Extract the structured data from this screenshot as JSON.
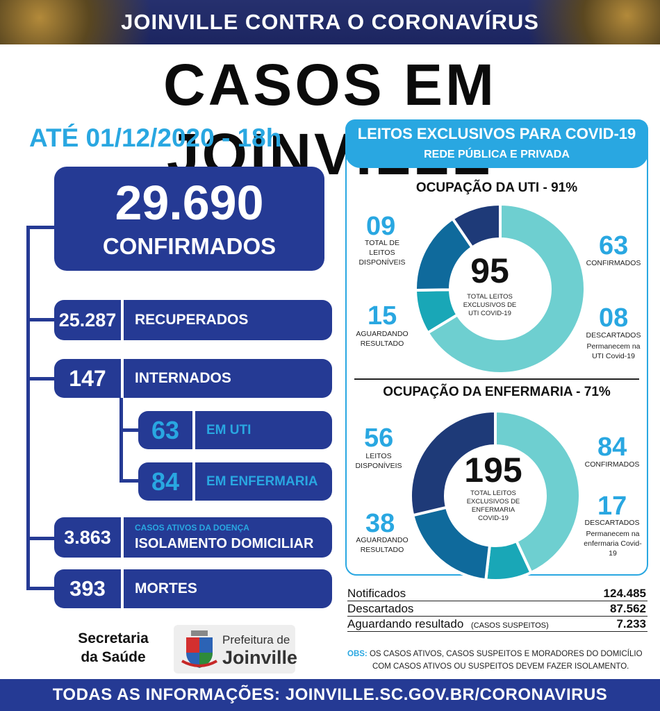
{
  "header": {
    "banner": "JOINVILLE CONTRA O CORONAVÍRUS",
    "title": "CASOS EM JOINVILLE",
    "date": "ATÉ 01/12/2020 - 18h"
  },
  "summary": {
    "confirmed_value": "29.690",
    "confirmed_label": "CONFIRMADOS",
    "recovered_value": "25.287",
    "recovered_label": "RECUPERADOS",
    "hospitalized_value": "147",
    "hospitalized_label": "INTERNADOS",
    "icu_value": "63",
    "icu_label": "EM UTI",
    "ward_value": "84",
    "ward_label": "EM ENFERMARIA",
    "home_value": "3.863",
    "home_caption": "CASOS ATIVOS DA DOENÇA",
    "home_label": "ISOLAMENTO DOMICILIAR",
    "deaths_value": "393",
    "deaths_label": "MORTES"
  },
  "beds": {
    "title": "LEITOS EXCLUSIVOS PARA COVID-19",
    "subtitle": "REDE PÚBLICA E PRIVADA"
  },
  "chart_data": [
    {
      "type": "pie",
      "title": "OCUPAÇÃO DA UTI - 91%",
      "center_value": "95",
      "center_caption": "TOTAL LEITOS EXCLUSIVOS DE UTI COVID-19",
      "slices": [
        {
          "label": "CONFIRMADOS",
          "value": 63,
          "display": "63",
          "color": "#6ecfd0"
        },
        {
          "label": "DESCARTADOS",
          "value": 8,
          "display": "08",
          "note": "Permanecem na UTI Covid-19",
          "color": "#19a7b7"
        },
        {
          "label": "AGUARDANDO RESULTADO",
          "value": 15,
          "display": "15",
          "color": "#0f6a9c"
        },
        {
          "label": "TOTAL DE LEITOS DISPONÍVEIS",
          "value": 9,
          "display": "09",
          "color": "#1e3a78"
        }
      ]
    },
    {
      "type": "pie",
      "title": "OCUPAÇÃO DA ENFERMARIA - 71%",
      "center_value": "195",
      "center_caption": "TOTAL LEITOS EXCLUSIVOS DE ENFERMARIA COVID-19",
      "slices": [
        {
          "label": "CONFIRMADOS",
          "value": 84,
          "display": "84",
          "color": "#6ecfd0"
        },
        {
          "label": "DESCARTADOS",
          "value": 17,
          "display": "17",
          "note": "Permanecem na enfermaria Covid-19",
          "color": "#19a7b7"
        },
        {
          "label": "AGUARDANDO RESULTADO",
          "value": 38,
          "display": "38",
          "color": "#0f6a9c"
        },
        {
          "label": "LEITOS DISPONÍVEIS",
          "value": 56,
          "display": "56",
          "color": "#1e3a78"
        }
      ]
    }
  ],
  "stats": [
    {
      "label": "Notificados",
      "extra": "",
      "value": "124.485"
    },
    {
      "label": "Descartados",
      "extra": "",
      "value": "87.562"
    },
    {
      "label": "Aguardando resultado",
      "extra": "(CASOS SUSPEITOS)",
      "value": "7.233"
    }
  ],
  "note": {
    "prefix": "OBS:",
    "line1": "OS CASOS ATIVOS, CASOS SUSPEITOS E MORADORES DO DOMICÍLIO",
    "line2": "COM CASOS ATIVOS OU SUSPEITOS DEVEM FAZER ISOLAMENTO."
  },
  "footer": {
    "secretaria_line1": "Secretaria",
    "secretaria_line2": "da Saúde",
    "logo_line1": "Prefeitura de",
    "logo_line2": "Joinville",
    "banner": "TODAS AS INFORMAÇÕES:  JOINVILLE.SC.GOV.BR/CORONAVIRUS"
  },
  "colors": {
    "navy": "#253a94",
    "accent": "#29a7e1"
  }
}
